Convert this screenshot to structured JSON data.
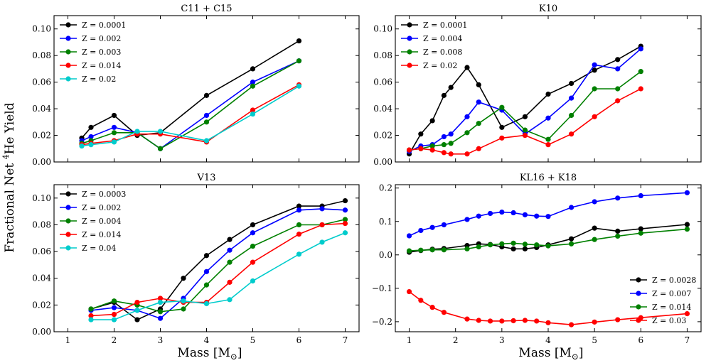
{
  "figure": {
    "ylabel_prefix": "Fractional Net ",
    "ylabel_sup": "4",
    "ylabel_suffix": "He Yield",
    "xlabel_prefix": "Mass [M",
    "xlabel_sub": "⊙",
    "xlabel_suffix": "]"
  },
  "chart_data": [
    {
      "type": "line",
      "title": "C11 + C15",
      "xlim": [
        0.7,
        7.3
      ],
      "ylim": [
        0,
        0.11
      ],
      "xticks": [
        1,
        2,
        3,
        4,
        5,
        6,
        7
      ],
      "yticks": [
        0,
        0.02,
        0.04,
        0.06,
        0.08,
        0.1
      ],
      "ytick_labels": [
        "0.00",
        "0.02",
        "0.04",
        "0.06",
        "0.08",
        "0.10"
      ],
      "show_xtick_labels": false,
      "legend": "top-left",
      "series": [
        {
          "name": "Z = 0.0001",
          "color": "#000000",
          "x": [
            1.3,
            1.5,
            2.0,
            2.5,
            3.0,
            4.0,
            5.0,
            6.0
          ],
          "y": [
            0.018,
            0.026,
            0.035,
            0.02,
            0.022,
            0.05,
            0.07,
            0.091
          ]
        },
        {
          "name": "Z = 0.002",
          "color": "#0000ff",
          "x": [
            1.3,
            1.5,
            2.0,
            2.5,
            3.0,
            4.0,
            5.0,
            6.0
          ],
          "y": [
            0.016,
            0.019,
            0.026,
            0.022,
            0.01,
            0.035,
            0.06,
            0.076
          ]
        },
        {
          "name": "Z = 0.003",
          "color": "#008000",
          "x": [
            1.3,
            1.5,
            2.0,
            2.5,
            3.0,
            4.0,
            5.0,
            6.0
          ],
          "y": [
            0.014,
            0.016,
            0.022,
            0.022,
            0.01,
            0.03,
            0.057,
            0.076
          ]
        },
        {
          "name": "Z = 0.014",
          "color": "#ff0000",
          "x": [
            1.3,
            1.5,
            2.0,
            2.5,
            3.0,
            4.0,
            5.0,
            6.0
          ],
          "y": [
            0.013,
            0.014,
            0.016,
            0.021,
            0.021,
            0.015,
            0.039,
            0.058
          ]
        },
        {
          "name": "Z = 0.02",
          "color": "#00cccc",
          "x": [
            1.3,
            1.5,
            2.0,
            2.5,
            3.0,
            4.0,
            5.0,
            6.0
          ],
          "y": [
            0.012,
            0.013,
            0.015,
            0.023,
            0.023,
            0.016,
            0.036,
            0.057
          ]
        }
      ]
    },
    {
      "type": "line",
      "title": "K10",
      "xlim": [
        0.7,
        7.3
      ],
      "ylim": [
        0,
        0.11
      ],
      "xticks": [
        1,
        2,
        3,
        4,
        5,
        6,
        7
      ],
      "yticks": [
        0,
        0.02,
        0.04,
        0.06,
        0.08,
        0.1
      ],
      "ytick_labels": [
        "0.00",
        "0.02",
        "0.04",
        "0.06",
        "0.08",
        "0.10"
      ],
      "show_xtick_labels": false,
      "legend": "top-left",
      "series": [
        {
          "name": "Z = 0.0001",
          "color": "#000000",
          "x": [
            1.0,
            1.25,
            1.5,
            1.75,
            1.9,
            2.25,
            2.5,
            3.0,
            3.5,
            4.0,
            4.5,
            5.0,
            5.5,
            6.0
          ],
          "y": [
            0.006,
            0.021,
            0.031,
            0.05,
            0.056,
            0.071,
            0.058,
            0.026,
            0.034,
            0.051,
            0.059,
            0.069,
            0.077,
            0.087
          ]
        },
        {
          "name": "Z = 0.004",
          "color": "#0000ff",
          "x": [
            1.0,
            1.25,
            1.5,
            1.75,
            1.9,
            2.25,
            2.5,
            3.0,
            3.5,
            4.0,
            4.5,
            5.0,
            5.5,
            6.0
          ],
          "y": [
            0.008,
            0.012,
            0.013,
            0.019,
            0.021,
            0.034,
            0.045,
            0.039,
            0.021,
            0.033,
            0.048,
            0.073,
            0.07,
            0.085
          ]
        },
        {
          "name": "Z = 0.008",
          "color": "#008000",
          "x": [
            1.0,
            1.25,
            1.5,
            1.75,
            1.9,
            2.25,
            2.5,
            3.0,
            3.5,
            4.0,
            4.5,
            5.0,
            5.5,
            6.0
          ],
          "y": [
            0.009,
            0.01,
            0.012,
            0.013,
            0.014,
            0.022,
            0.029,
            0.041,
            0.024,
            0.017,
            0.035,
            0.055,
            0.055,
            0.068
          ]
        },
        {
          "name": "Z = 0.02",
          "color": "#ff0000",
          "x": [
            1.0,
            1.25,
            1.5,
            1.75,
            1.9,
            2.25,
            2.5,
            3.0,
            3.5,
            4.0,
            4.5,
            5.0,
            5.5,
            6.0
          ],
          "y": [
            0.009,
            0.01,
            0.009,
            0.007,
            0.006,
            0.006,
            0.01,
            0.018,
            0.02,
            0.013,
            0.021,
            0.034,
            0.046,
            0.055
          ]
        }
      ]
    },
    {
      "type": "line",
      "title": "V13",
      "xlim": [
        0.7,
        7.3
      ],
      "ylim": [
        0,
        0.11
      ],
      "xticks": [
        1,
        2,
        3,
        4,
        5,
        6,
        7
      ],
      "yticks": [
        0,
        0.02,
        0.04,
        0.06,
        0.08,
        0.1
      ],
      "ytick_labels": [
        "0.00",
        "0.02",
        "0.04",
        "0.06",
        "0.08",
        "0.10"
      ],
      "show_xtick_labels": true,
      "legend": "top-left",
      "series": [
        {
          "name": "Z = 0.0003",
          "color": "#000000",
          "x": [
            1.5,
            2.0,
            2.5,
            3.0,
            3.5,
            4.0,
            4.5,
            5.0,
            6.0,
            6.5,
            7.0
          ],
          "y": [
            0.017,
            0.022,
            0.009,
            0.017,
            0.04,
            0.057,
            0.069,
            0.08,
            0.094,
            0.094,
            0.098
          ]
        },
        {
          "name": "Z = 0.002",
          "color": "#0000ff",
          "x": [
            1.5,
            2.0,
            2.5,
            3.0,
            3.5,
            4.0,
            4.5,
            5.0,
            6.0,
            6.5,
            7.0
          ],
          "y": [
            0.016,
            0.018,
            0.016,
            0.01,
            0.025,
            0.045,
            0.061,
            0.074,
            0.091,
            0.092,
            0.091
          ]
        },
        {
          "name": "Z = 0.004",
          "color": "#008000",
          "x": [
            1.5,
            2.0,
            2.5,
            3.0,
            3.5,
            4.0,
            4.5,
            5.0,
            6.0,
            6.5,
            7.0
          ],
          "y": [
            0.017,
            0.023,
            0.02,
            0.015,
            0.017,
            0.035,
            0.052,
            0.064,
            0.08,
            0.08,
            0.084
          ]
        },
        {
          "name": "Z = 0.014",
          "color": "#ff0000",
          "x": [
            1.5,
            2.0,
            2.5,
            3.0,
            3.5,
            4.0,
            4.5,
            5.0,
            6.0,
            6.5,
            7.0
          ],
          "y": [
            0.012,
            0.013,
            0.022,
            0.025,
            0.022,
            0.022,
            0.037,
            0.052,
            0.073,
            0.08,
            0.081
          ]
        },
        {
          "name": "Z = 0.04",
          "color": "#00cccc",
          "x": [
            1.5,
            2.0,
            2.5,
            3.0,
            3.5,
            4.0,
            4.5,
            5.0,
            6.0,
            6.5,
            7.0
          ],
          "y": [
            0.009,
            0.009,
            0.016,
            0.022,
            0.023,
            0.021,
            0.024,
            0.038,
            0.058,
            0.067,
            0.074
          ]
        }
      ]
    },
    {
      "type": "line",
      "title": "KL16 + K18",
      "xlim": [
        0.7,
        7.3
      ],
      "ylim": [
        -0.23,
        0.21
      ],
      "xticks": [
        1,
        2,
        3,
        4,
        5,
        6,
        7
      ],
      "yticks": [
        -0.2,
        -0.1,
        0,
        0.1,
        0.2
      ],
      "ytick_labels": [
        "−0.2",
        "−0.1",
        "0.0",
        "0.1",
        "0.2"
      ],
      "show_xtick_labels": true,
      "legend": "bottom-right",
      "series": [
        {
          "name": "Z = 0.0028",
          "color": "#000000",
          "x": [
            1.0,
            1.25,
            1.5,
            1.75,
            2.25,
            2.5,
            2.75,
            3.0,
            3.25,
            3.5,
            3.75,
            4.0,
            4.5,
            5.0,
            5.5,
            6.0,
            7.0
          ],
          "y": [
            0.008,
            0.013,
            0.017,
            0.019,
            0.028,
            0.033,
            0.031,
            0.024,
            0.018,
            0.018,
            0.022,
            0.03,
            0.048,
            0.08,
            0.071,
            0.078,
            0.091
          ]
        },
        {
          "name": "Z = 0.007",
          "color": "#0000ff",
          "x": [
            1.0,
            1.25,
            1.5,
            1.75,
            2.25,
            2.5,
            2.75,
            3.0,
            3.25,
            3.5,
            3.75,
            4.0,
            4.5,
            5.0,
            5.5,
            6.0,
            7.0
          ],
          "y": [
            0.057,
            0.073,
            0.082,
            0.09,
            0.106,
            0.116,
            0.124,
            0.128,
            0.126,
            0.12,
            0.116,
            0.115,
            0.142,
            0.159,
            0.17,
            0.177,
            0.186
          ]
        },
        {
          "name": "Z = 0.014",
          "color": "#008000",
          "x": [
            1.0,
            1.25,
            1.5,
            1.75,
            2.25,
            2.5,
            2.75,
            3.0,
            3.25,
            3.5,
            3.75,
            4.0,
            4.5,
            5.0,
            5.5,
            6.0,
            7.0
          ],
          "y": [
            0.012,
            0.014,
            0.015,
            0.015,
            0.018,
            0.024,
            0.03,
            0.033,
            0.035,
            0.032,
            0.03,
            0.027,
            0.033,
            0.046,
            0.056,
            0.065,
            0.077
          ]
        },
        {
          "name": "Z = 0.03",
          "color": "#ff0000",
          "x": [
            1.0,
            1.25,
            1.5,
            1.75,
            2.25,
            2.5,
            2.75,
            3.0,
            3.25,
            3.5,
            3.75,
            4.0,
            4.5,
            5.0,
            5.5,
            6.0,
            7.0
          ],
          "y": [
            -0.11,
            -0.136,
            -0.157,
            -0.172,
            -0.192,
            -0.196,
            -0.198,
            -0.198,
            -0.197,
            -0.196,
            -0.198,
            -0.203,
            -0.209,
            -0.201,
            -0.194,
            -0.188,
            -0.176
          ]
        }
      ]
    }
  ]
}
